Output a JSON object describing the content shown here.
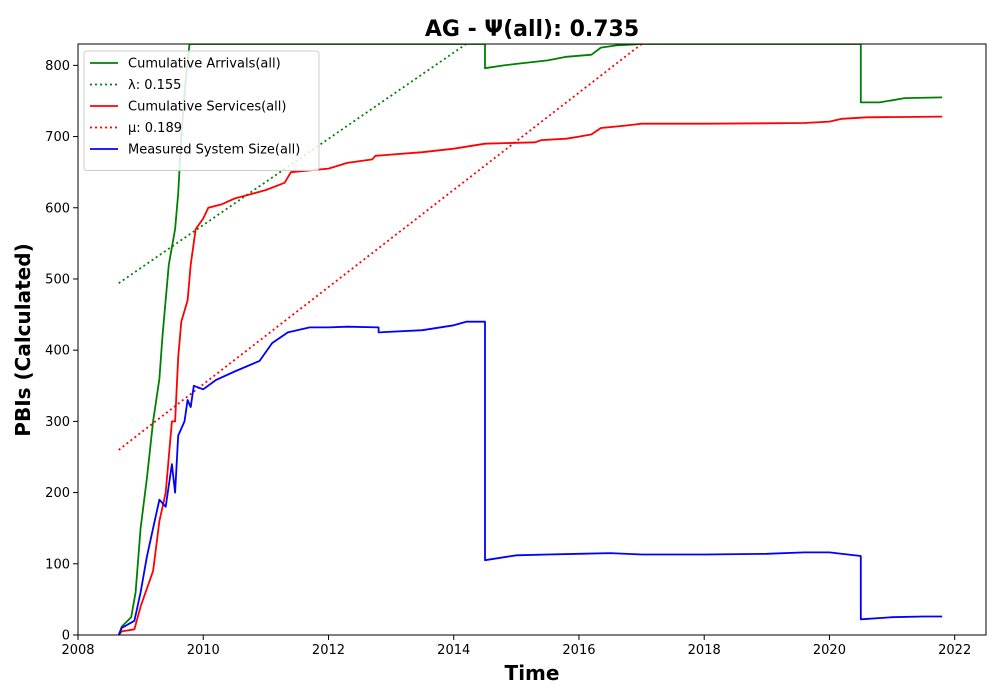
{
  "chart_data": {
    "type": "line",
    "title": "AG -  Ψ(all): 0.735",
    "xlabel": "Time",
    "ylabel": "PBIs (Calculated)",
    "xlim": [
      2008,
      2022.5
    ],
    "ylim": [
      0,
      830
    ],
    "x_ticks": [
      2008,
      2010,
      2012,
      2014,
      2016,
      2018,
      2020,
      2022
    ],
    "y_ticks": [
      0,
      100,
      200,
      300,
      400,
      500,
      600,
      700,
      800
    ],
    "grid": false,
    "legend_position": "top-left",
    "series": [
      {
        "name": "Cumulative Arrivals(all)",
        "color": "#008000",
        "style": "solid",
        "points": [
          [
            2008.65,
            0
          ],
          [
            2008.7,
            12
          ],
          [
            2008.85,
            25
          ],
          [
            2008.92,
            60
          ],
          [
            2009.0,
            150
          ],
          [
            2009.1,
            220
          ],
          [
            2009.2,
            300
          ],
          [
            2009.3,
            360
          ],
          [
            2009.35,
            420
          ],
          [
            2009.45,
            520
          ],
          [
            2009.55,
            570
          ],
          [
            2009.6,
            620
          ],
          [
            2009.65,
            700
          ],
          [
            2009.72,
            780
          ],
          [
            2009.78,
            830
          ],
          [
            2014.5,
            830
          ],
          [
            2014.5,
            796
          ],
          [
            2014.8,
            800
          ],
          [
            2015.0,
            802
          ],
          [
            2015.5,
            807
          ],
          [
            2015.8,
            812
          ],
          [
            2016.2,
            815
          ],
          [
            2016.35,
            825
          ],
          [
            2016.6,
            828
          ],
          [
            2017.0,
            830
          ],
          [
            2018.5,
            830
          ],
          [
            2020.5,
            830
          ],
          [
            2020.5,
            748
          ],
          [
            2020.8,
            748
          ],
          [
            2021.0,
            751
          ],
          [
            2021.2,
            754
          ],
          [
            2021.8,
            755
          ]
        ]
      },
      {
        "name": "λ: 0.155",
        "color": "#008000",
        "style": "dotted",
        "points": [
          [
            2008.65,
            494
          ],
          [
            2014.2,
            830
          ]
        ]
      },
      {
        "name": "Cumulative Services(all)",
        "color": "#ff0000",
        "style": "solid",
        "points": [
          [
            2008.65,
            0
          ],
          [
            2008.7,
            5
          ],
          [
            2008.9,
            8
          ],
          [
            2009.0,
            40
          ],
          [
            2009.2,
            90
          ],
          [
            2009.3,
            160
          ],
          [
            2009.4,
            200
          ],
          [
            2009.5,
            300
          ],
          [
            2009.55,
            300
          ],
          [
            2009.6,
            390
          ],
          [
            2009.65,
            440
          ],
          [
            2009.75,
            470
          ],
          [
            2009.8,
            520
          ],
          [
            2009.88,
            570
          ],
          [
            2010.0,
            585
          ],
          [
            2010.08,
            600
          ],
          [
            2010.3,
            605
          ],
          [
            2010.5,
            613
          ],
          [
            2010.8,
            620
          ],
          [
            2011.0,
            625
          ],
          [
            2011.3,
            635
          ],
          [
            2011.4,
            650
          ],
          [
            2012.0,
            655
          ],
          [
            2012.3,
            663
          ],
          [
            2012.7,
            668
          ],
          [
            2012.75,
            673
          ],
          [
            2013.5,
            678
          ],
          [
            2014.0,
            683
          ],
          [
            2014.5,
            690
          ],
          [
            2015.3,
            692
          ],
          [
            2015.4,
            695
          ],
          [
            2015.8,
            697
          ],
          [
            2016.0,
            700
          ],
          [
            2016.2,
            703
          ],
          [
            2016.35,
            712
          ],
          [
            2016.7,
            715
          ],
          [
            2017.0,
            718
          ],
          [
            2018.0,
            718
          ],
          [
            2019.6,
            719
          ],
          [
            2020.0,
            721
          ],
          [
            2020.2,
            725
          ],
          [
            2020.6,
            727
          ],
          [
            2021.8,
            728
          ]
        ]
      },
      {
        "name": "μ: 0.189",
        "color": "#ff0000",
        "style": "dotted",
        "points": [
          [
            2008.65,
            260
          ],
          [
            2017.0,
            830
          ]
        ]
      },
      {
        "name": "Measured System Size(all)",
        "color": "#0000ff",
        "style": "solid",
        "points": [
          [
            2008.65,
            0
          ],
          [
            2008.7,
            10
          ],
          [
            2008.9,
            20
          ],
          [
            2009.0,
            60
          ],
          [
            2009.1,
            110
          ],
          [
            2009.2,
            150
          ],
          [
            2009.3,
            190
          ],
          [
            2009.4,
            180
          ],
          [
            2009.5,
            240
          ],
          [
            2009.55,
            200
          ],
          [
            2009.6,
            280
          ],
          [
            2009.7,
            300
          ],
          [
            2009.75,
            330
          ],
          [
            2009.8,
            320
          ],
          [
            2009.85,
            350
          ],
          [
            2010.0,
            345
          ],
          [
            2010.2,
            358
          ],
          [
            2010.5,
            370
          ],
          [
            2010.9,
            385
          ],
          [
            2011.1,
            410
          ],
          [
            2011.35,
            425
          ],
          [
            2011.7,
            432
          ],
          [
            2012.0,
            432
          ],
          [
            2012.3,
            433
          ],
          [
            2012.8,
            432
          ],
          [
            2012.8,
            425
          ],
          [
            2013.5,
            428
          ],
          [
            2014.0,
            435
          ],
          [
            2014.2,
            440
          ],
          [
            2014.5,
            440
          ],
          [
            2014.5,
            105
          ],
          [
            2015.0,
            112
          ],
          [
            2015.5,
            113
          ],
          [
            2016.0,
            114
          ],
          [
            2016.5,
            115
          ],
          [
            2017.0,
            113
          ],
          [
            2018.0,
            113
          ],
          [
            2019.0,
            114
          ],
          [
            2019.6,
            116
          ],
          [
            2020.0,
            116
          ],
          [
            2020.5,
            111
          ],
          [
            2020.5,
            22
          ],
          [
            2021.0,
            25
          ],
          [
            2021.5,
            26
          ],
          [
            2021.8,
            26
          ]
        ]
      }
    ]
  }
}
